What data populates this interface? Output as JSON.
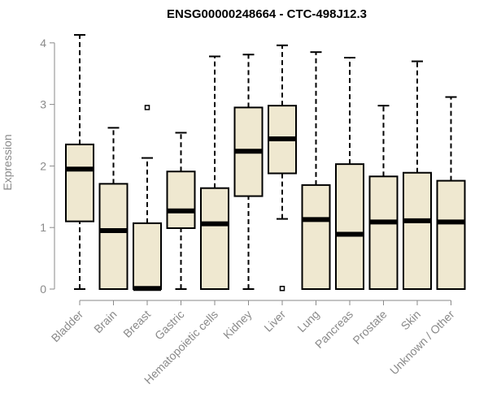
{
  "chart_data": {
    "type": "box",
    "title": "ENSG00000248664 - CTC-498J12.3",
    "ylabel": "Expression",
    "xlabel": "",
    "ylim": [
      0,
      4.2
    ],
    "yticks": [
      0,
      1,
      2,
      3,
      4
    ],
    "grid": false,
    "box_fill": "#efe8d0",
    "categories": [
      "Bladder",
      "Brain",
      "Breast",
      "Gastric",
      "Hematopoietic cells",
      "Kidney",
      "Liver",
      "Lung",
      "Pancreas",
      "Prostate",
      "Skin",
      "Unknown / Other"
    ],
    "boxes": [
      {
        "min": 0.0,
        "q1": 1.1,
        "median": 1.95,
        "q3": 2.35,
        "max": 4.13,
        "outliers": []
      },
      {
        "min": 0.0,
        "q1": 0.0,
        "median": 0.95,
        "q3": 1.71,
        "max": 2.62,
        "outliers": []
      },
      {
        "min": 0.0,
        "q1": 0.0,
        "median": 0.01,
        "q3": 1.07,
        "max": 2.13,
        "outliers": [
          2.95
        ]
      },
      {
        "min": 0.0,
        "q1": 0.99,
        "median": 1.27,
        "q3": 1.91,
        "max": 2.54,
        "outliers": []
      },
      {
        "min": 0.0,
        "q1": 0.0,
        "median": 1.06,
        "q3": 1.64,
        "max": 3.78,
        "outliers": []
      },
      {
        "min": 0.0,
        "q1": 1.51,
        "median": 2.24,
        "q3": 2.95,
        "max": 3.81,
        "outliers": []
      },
      {
        "min": 1.14,
        "q1": 1.88,
        "median": 2.44,
        "q3": 2.98,
        "max": 3.96,
        "outliers": [
          0.01
        ]
      },
      {
        "min": 0.0,
        "q1": 0.0,
        "median": 1.13,
        "q3": 1.69,
        "max": 3.85,
        "outliers": []
      },
      {
        "min": 0.0,
        "q1": 0.0,
        "median": 0.89,
        "q3": 2.03,
        "max": 3.76,
        "outliers": []
      },
      {
        "min": 0.0,
        "q1": 0.0,
        "median": 1.09,
        "q3": 1.83,
        "max": 2.98,
        "outliers": []
      },
      {
        "min": 0.0,
        "q1": 0.0,
        "median": 1.11,
        "q3": 1.89,
        "max": 3.7,
        "outliers": []
      },
      {
        "min": 0.0,
        "q1": 0.0,
        "median": 1.09,
        "q3": 1.76,
        "max": 3.12,
        "outliers": []
      }
    ]
  }
}
